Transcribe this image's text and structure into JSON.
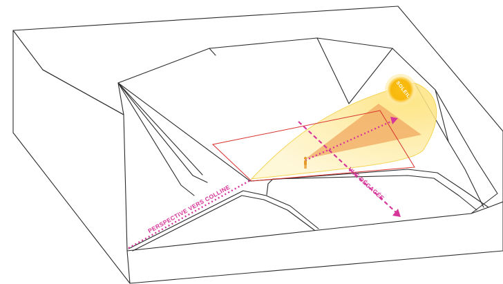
{
  "labels": {
    "sun": "SOLEIL",
    "view": "VUE DÉGAGÉE",
    "perspective": "PERSPECTIVE VERS COLLINE"
  },
  "colors": {
    "sun_fill": "#f9c10e",
    "sun_glow": "#fde9a3",
    "solar_field": "#fde48c",
    "wedge": "#f0a860",
    "plot_outline": "#d9302c",
    "arrow": "#d6359a",
    "person": "#e59a2c"
  },
  "icons": {
    "sun": "sun-icon",
    "person": "person-icon"
  }
}
